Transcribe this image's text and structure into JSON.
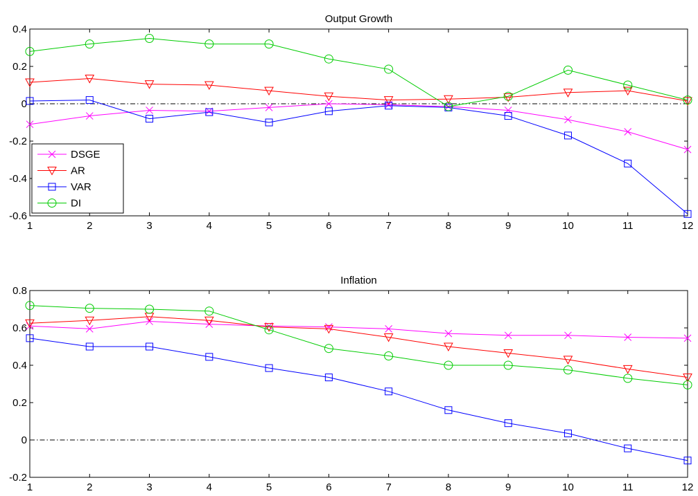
{
  "chart_data": [
    {
      "type": "line",
      "title": "Output Growth",
      "xlabel": "",
      "ylabel": "",
      "x": [
        1,
        2,
        3,
        4,
        5,
        6,
        7,
        8,
        9,
        10,
        11,
        12
      ],
      "xlim": [
        1,
        12
      ],
      "ylim": [
        -0.6,
        0.4
      ],
      "xticks": [
        "1",
        "2",
        "3",
        "4",
        "5",
        "6",
        "7",
        "8",
        "9",
        "10",
        "11",
        "12"
      ],
      "yticks": [
        "-0.6",
        "-0.4",
        "-0.2",
        "0",
        "0.2",
        "0.4"
      ],
      "ytick_values": [
        -0.6,
        -0.4,
        -0.2,
        0,
        0.2,
        0.4
      ],
      "zero_line": true,
      "grid": false,
      "legend_position": "lower-left",
      "series": [
        {
          "name": "DSGE",
          "color": "#ff00ff",
          "marker": "x",
          "values": [
            -0.11,
            -0.065,
            -0.035,
            -0.04,
            -0.02,
            0.0,
            -0.005,
            -0.015,
            -0.035,
            -0.085,
            -0.15,
            -0.245
          ]
        },
        {
          "name": "AR",
          "color": "#ff0000",
          "marker": "triangle-down",
          "values": [
            0.115,
            0.135,
            0.105,
            0.1,
            0.07,
            0.04,
            0.02,
            0.025,
            0.035,
            0.06,
            0.07,
            0.015
          ]
        },
        {
          "name": "VAR",
          "color": "#0000ff",
          "marker": "square",
          "values": [
            0.015,
            0.02,
            -0.08,
            -0.045,
            -0.1,
            -0.04,
            -0.01,
            -0.02,
            -0.065,
            -0.17,
            -0.32,
            -0.59
          ]
        },
        {
          "name": "DI",
          "color": "#00cc00",
          "marker": "circle",
          "values": [
            0.28,
            0.32,
            0.35,
            0.32,
            0.32,
            0.24,
            0.185,
            -0.015,
            0.04,
            0.18,
            0.1,
            0.02
          ]
        }
      ]
    },
    {
      "type": "line",
      "title": "Inflation",
      "xlabel": "",
      "ylabel": "",
      "x": [
        1,
        2,
        3,
        4,
        5,
        6,
        7,
        8,
        9,
        10,
        11,
        12
      ],
      "xlim": [
        1,
        12
      ],
      "ylim": [
        -0.2,
        0.8
      ],
      "xticks": [
        "1",
        "2",
        "3",
        "4",
        "5",
        "6",
        "7",
        "8",
        "9",
        "10",
        "11",
        "12"
      ],
      "yticks": [
        "-0.2",
        "0",
        "0.2",
        "0.4",
        "0.6",
        "0.8"
      ],
      "ytick_values": [
        -0.2,
        0,
        0.2,
        0.4,
        0.6,
        0.8
      ],
      "zero_line": true,
      "grid": false,
      "series": [
        {
          "name": "DSGE",
          "color": "#ff00ff",
          "marker": "x",
          "values": [
            0.61,
            0.595,
            0.635,
            0.62,
            0.61,
            0.605,
            0.595,
            0.57,
            0.56,
            0.56,
            0.55,
            0.545
          ]
        },
        {
          "name": "AR",
          "color": "#ff0000",
          "marker": "triangle-down",
          "values": [
            0.625,
            0.64,
            0.66,
            0.64,
            0.605,
            0.595,
            0.55,
            0.5,
            0.465,
            0.43,
            0.38,
            0.335
          ]
        },
        {
          "name": "VAR",
          "color": "#0000ff",
          "marker": "square",
          "values": [
            0.545,
            0.5,
            0.5,
            0.445,
            0.385,
            0.335,
            0.26,
            0.16,
            0.09,
            0.035,
            -0.045,
            -0.11
          ]
        },
        {
          "name": "DI",
          "color": "#00cc00",
          "marker": "circle",
          "values": [
            0.72,
            0.705,
            0.7,
            0.69,
            0.59,
            0.49,
            0.45,
            0.4,
            0.4,
            0.375,
            0.33,
            0.295
          ]
        }
      ]
    }
  ]
}
